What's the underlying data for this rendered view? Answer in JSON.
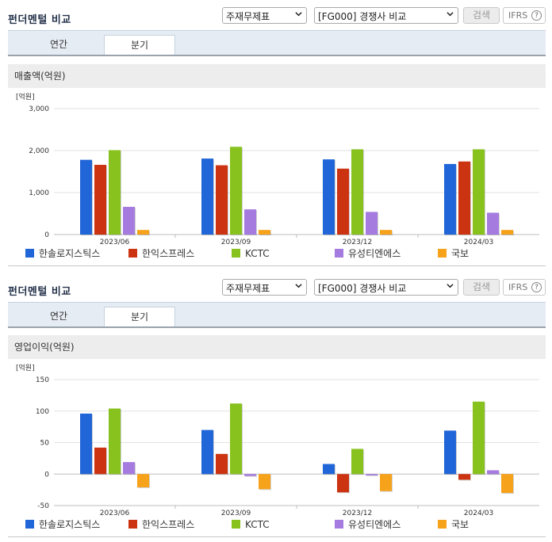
{
  "sections": [
    {
      "title": "펀더멘털 비교",
      "select_type": "주재무제표",
      "select_compare": "[FG000] 경쟁사 비교",
      "search_label": "검색",
      "ifrs_label": "IFRS",
      "help_glyph": "?",
      "tabs": [
        "연간",
        "분기"
      ],
      "active_tab": "분기",
      "panel_title": "매출액(억원)"
    },
    {
      "title": "펀더멘털 비교",
      "select_type": "주재무제표",
      "select_compare": "[FG000] 경쟁사 비교",
      "search_label": "검색",
      "ifrs_label": "IFRS",
      "help_glyph": "?",
      "tabs": [
        "연간",
        "분기"
      ],
      "active_tab": "분기",
      "panel_title": "영업이익(억원)"
    }
  ],
  "icons": {
    "dropdown": "chevron-down-icon",
    "help": "question-circle-icon"
  },
  "colors": {
    "series": [
      "#2166d8",
      "#cc3311",
      "#88c21f",
      "#a57be0",
      "#f7a21b"
    ]
  },
  "chart_data": [
    {
      "type": "bar",
      "unit_label": "[억원]",
      "categories": [
        "2023/06",
        "2023/09",
        "2023/12",
        "2024/03"
      ],
      "ylim": [
        0,
        3000
      ],
      "yticks": [
        0,
        1000,
        2000,
        3000
      ],
      "ytick_labels": [
        "0",
        "1,000",
        "2,000",
        "3,000"
      ],
      "grid": true,
      "legend": "bottom",
      "series": [
        {
          "name": "한솔로지스틱스",
          "color": "#2166d8",
          "values": [
            1780,
            1810,
            1790,
            1680
          ]
        },
        {
          "name": "한익스프레스",
          "color": "#cc3311",
          "values": [
            1660,
            1650,
            1570,
            1740
          ]
        },
        {
          "name": "KCTC",
          "color": "#88c21f",
          "values": [
            2010,
            2090,
            2030,
            2030
          ]
        },
        {
          "name": "유성티엔에스",
          "color": "#a57be0",
          "values": [
            660,
            600,
            540,
            520
          ]
        },
        {
          "name": "국보",
          "color": "#f7a21b",
          "values": [
            110,
            110,
            110,
            110
          ]
        }
      ]
    },
    {
      "type": "bar",
      "unit_label": "[억원]",
      "categories": [
        "2023/06",
        "2023/09",
        "2023/12",
        "2024/03"
      ],
      "ylim": [
        -50,
        150
      ],
      "yticks": [
        -50,
        0,
        50,
        100,
        150
      ],
      "ytick_labels": [
        "-50",
        "0",
        "50",
        "100",
        "150"
      ],
      "grid": true,
      "legend": "bottom",
      "series": [
        {
          "name": "한솔로지스틱스",
          "color": "#2166d8",
          "values": [
            96,
            70,
            16,
            69
          ]
        },
        {
          "name": "한익스프레스",
          "color": "#cc3311",
          "values": [
            42,
            32,
            -29,
            -9
          ]
        },
        {
          "name": "KCTC",
          "color": "#88c21f",
          "values": [
            104,
            112,
            40,
            115
          ]
        },
        {
          "name": "유성티엔에스",
          "color": "#a57be0",
          "values": [
            19,
            -3,
            -2,
            6
          ]
        },
        {
          "name": "국보",
          "color": "#f7a21b",
          "values": [
            -21,
            -24,
            -27,
            -30
          ]
        }
      ]
    }
  ]
}
